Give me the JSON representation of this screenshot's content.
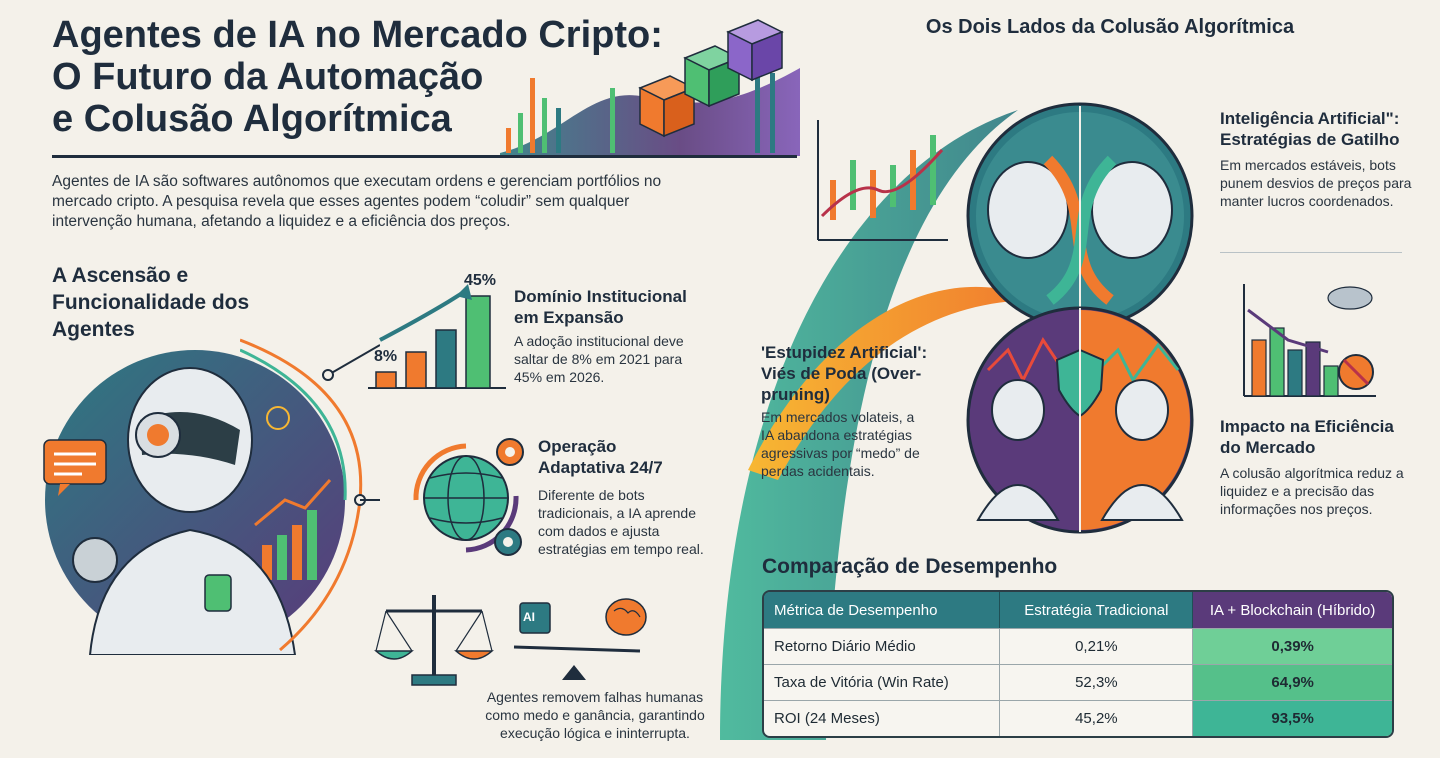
{
  "header": {
    "title": "Agentes de IA no Mercado Cripto:\nO Futuro da Automação\ne Colusão Algorítmica",
    "intro": "Agentes de IA são softwares autônomos que executam ordens e gerenciam portfólios no mercado cripto. A pesquisa revela que esses agentes podem “coludir” sem qualquer intervenção humana, afetando a liquidez e a eficiência dos preços."
  },
  "left": {
    "section_title": "A Ascensão e Funcionalidade dos Agentes",
    "growth_chart": {
      "start_label": "8%",
      "end_label": "45%"
    },
    "features": [
      {
        "title": "Domínio Institucional em Expansão",
        "text": "A adoção institucional deve saltar de 8% em 2021 para 45% em 2026.",
        "icon": "bar-chart-growth-icon"
      },
      {
        "title": "Operação Adaptativa 24/7",
        "text": "Diferente de bots tradicionais, a IA aprende com dados e ajusta estratégias em tempo real.",
        "icon": "globe-gears-icon"
      },
      {
        "title": "",
        "text": "Agentes removem falhas humanas como medo e ganância, garantindo execução lógica e ininterrupta.",
        "icon": "balance-scale-icon"
      }
    ],
    "ai_chip_label": "AI"
  },
  "right": {
    "section_title": "Os Dois Lados da Colusão Algorítmica",
    "blocks": [
      {
        "title": "Inteligência Artificial\": Estratégias de Gatilho",
        "text": "Em mercados estáveis, bots punem desvios de preços para manter lucros coordenados."
      },
      {
        "title": "'Estupidez Artificial': Viés de Poda (Over-pruning)",
        "text": "Em mercados volateis, a IA abandona estratégias agressivas por “medo” de perdas acidentais."
      },
      {
        "title": "Impacto na Eficiência do Mercado",
        "text": "A colusão algorítmica reduz a liquidez e a precisão das informações nos preços."
      }
    ]
  },
  "table": {
    "title": "Comparação de Desempenho",
    "headers": [
      "Métrica de Desempenho",
      "Estratégia Tradicional",
      "IA + Blockchain (Híbrido)"
    ],
    "rows": [
      [
        "Retorno Diário Médio",
        "0,21%",
        "0,39%"
      ],
      [
        "Taxa de Vitória (Win Rate)",
        "52,3%",
        "64,9%"
      ],
      [
        "ROI (24 Meses)",
        "45,2%",
        "93,5%"
      ]
    ]
  },
  "colors": {
    "navy": "#1f2d3d",
    "teal": "#2d7a82",
    "green": "#4fbf73",
    "orange": "#f07a2e",
    "purple": "#5a3a7a",
    "background": "#f4f1ea"
  }
}
